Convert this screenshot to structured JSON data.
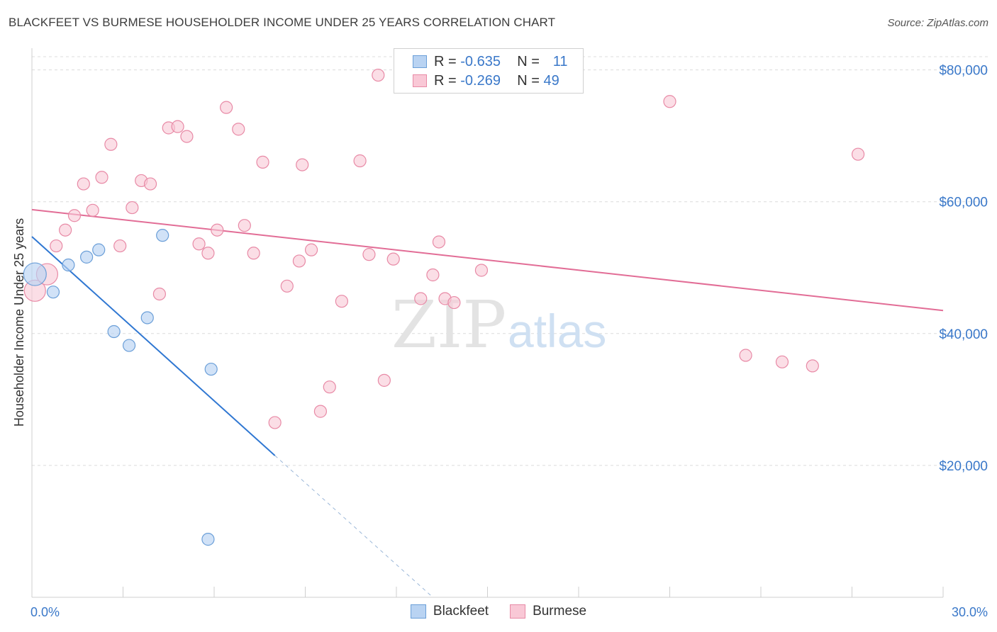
{
  "title": "BLACKFEET VS BURMESE HOUSEHOLDER INCOME UNDER 25 YEARS CORRELATION CHART",
  "source": "Source: ZipAtlas.com",
  "watermark": {
    "zip": "ZIP",
    "atlas": "atlas"
  },
  "legend": {
    "r_label": "R =",
    "n_label": "N =",
    "rows": [
      {
        "r": "-0.635",
        "n": "11",
        "fill": "#b9d3f2",
        "stroke": "#6b9fd8"
      },
      {
        "r": "-0.269",
        "n": "49",
        "fill": "#f9c8d6",
        "stroke": "#e88aa6"
      }
    ]
  },
  "bottom_legend": [
    {
      "label": "Blackfeet",
      "fill": "#b9d3f2",
      "stroke": "#6b9fd8"
    },
    {
      "label": "Burmese",
      "fill": "#f9c8d6",
      "stroke": "#e88aa6"
    }
  ],
  "chart_data": {
    "type": "scatter",
    "title": "BLACKFEET VS BURMESE HOUSEHOLDER INCOME UNDER 25 YEARS CORRELATION CHART",
    "xlabel": "",
    "ylabel": "Householder Income Under 25 years",
    "xlim": [
      0,
      30
    ],
    "ylim": [
      0,
      82000
    ],
    "x_tick_labels": [
      "0.0%",
      "30.0%"
    ],
    "y_ticks": [
      20000,
      40000,
      60000,
      80000
    ],
    "y_tick_labels": [
      "$20,000",
      "$40,000",
      "$60,000",
      "$80,000"
    ],
    "grid": true,
    "legend_position": "top-center",
    "colors": {
      "Blackfeet": "#2f77d2",
      "Burmese": "#e26d96"
    },
    "series": [
      {
        "name": "Blackfeet",
        "points": [
          [
            0.1,
            49000
          ],
          [
            0.7,
            46300
          ],
          [
            1.2,
            50400
          ],
          [
            1.8,
            51600
          ],
          [
            2.2,
            52700
          ],
          [
            2.7,
            40300
          ],
          [
            3.2,
            38200
          ],
          [
            3.8,
            42400
          ],
          [
            4.3,
            54900
          ],
          [
            5.9,
            34600
          ],
          [
            5.8,
            8800
          ]
        ],
        "trend": {
          "x": [
            0,
            8
          ],
          "y": [
            54700,
            21500
          ]
        },
        "trend_extension": {
          "x": [
            8,
            13.2
          ],
          "y": [
            21500,
            0
          ]
        }
      },
      {
        "name": "Burmese",
        "points": [
          [
            0.1,
            46500
          ],
          [
            0.5,
            49000
          ],
          [
            0.8,
            53300
          ],
          [
            1.1,
            55700
          ],
          [
            1.4,
            57900
          ],
          [
            1.7,
            62700
          ],
          [
            2.0,
            58700
          ],
          [
            2.3,
            63700
          ],
          [
            2.6,
            68700
          ],
          [
            2.9,
            53300
          ],
          [
            3.3,
            59100
          ],
          [
            3.6,
            63200
          ],
          [
            3.9,
            62700
          ],
          [
            4.2,
            46000
          ],
          [
            4.5,
            71200
          ],
          [
            4.8,
            71400
          ],
          [
            5.1,
            69900
          ],
          [
            5.5,
            53600
          ],
          [
            5.8,
            52200
          ],
          [
            6.1,
            55700
          ],
          [
            6.4,
            74300
          ],
          [
            6.8,
            71000
          ],
          [
            7.0,
            56400
          ],
          [
            7.3,
            52200
          ],
          [
            7.6,
            66000
          ],
          [
            8.0,
            26500
          ],
          [
            8.4,
            47200
          ],
          [
            8.8,
            51000
          ],
          [
            8.9,
            65600
          ],
          [
            9.2,
            52700
          ],
          [
            9.5,
            28200
          ],
          [
            9.8,
            31900
          ],
          [
            10.2,
            44900
          ],
          [
            10.8,
            66200
          ],
          [
            11.1,
            52000
          ],
          [
            11.4,
            79200
          ],
          [
            11.6,
            32900
          ],
          [
            11.9,
            51300
          ],
          [
            12.8,
            45300
          ],
          [
            13.2,
            48900
          ],
          [
            13.4,
            53900
          ],
          [
            13.6,
            45300
          ],
          [
            13.9,
            44700
          ],
          [
            14.8,
            49600
          ],
          [
            21.0,
            75200
          ],
          [
            23.5,
            36700
          ],
          [
            24.7,
            35700
          ],
          [
            25.7,
            35100
          ],
          [
            27.2,
            67200
          ]
        ],
        "trend": {
          "x": [
            0,
            30
          ],
          "y": [
            58800,
            43500
          ]
        }
      }
    ]
  }
}
